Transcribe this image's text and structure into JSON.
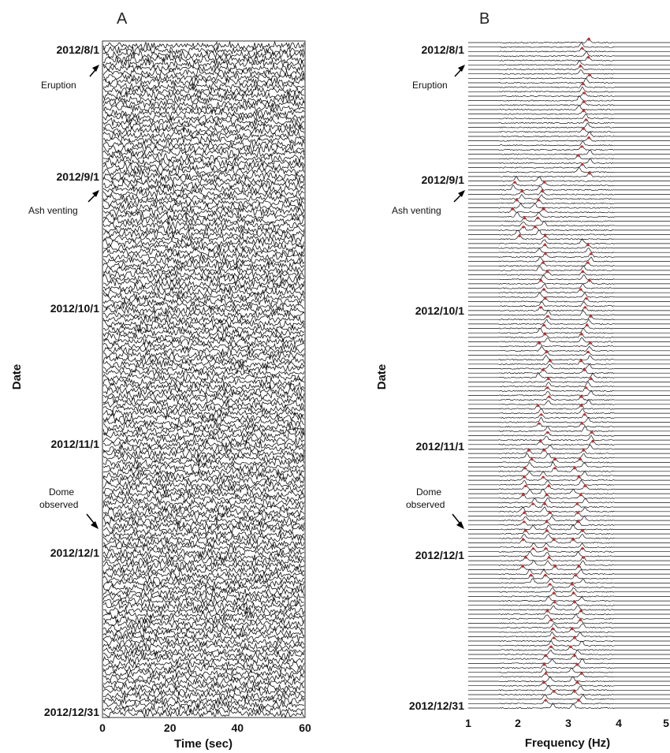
{
  "chart_data": [
    {
      "panel": "A",
      "type": "line",
      "xlabel": "Time (sec)",
      "ylabel": "Date",
      "xlim": [
        0,
        60
      ],
      "xticks": [
        0,
        20,
        40,
        60
      ],
      "ylim": [
        "2012/8/1",
        "2012/12/31"
      ],
      "y_tick_labels": [
        "2012/8/1",
        "2012/9/1",
        "2012/10/1",
        "2012/11/1",
        "2012/12/1",
        "2012/12/31"
      ],
      "annotations": [
        {
          "text": "Eruption",
          "date": "2012/8/7"
        },
        {
          "text": "Ash venting",
          "date": "2012/9/7"
        },
        {
          "text": "Dome observed",
          "date": "2012/11/24"
        }
      ],
      "trace_count": 150,
      "series": []
    },
    {
      "panel": "B",
      "type": "line",
      "xlabel": "Frequency (Hz)",
      "ylabel": "Date",
      "xlim": [
        1,
        5
      ],
      "xticks": [
        1,
        2,
        3,
        4,
        5
      ],
      "ylim": [
        "2012/8/1",
        "2012/12/31"
      ],
      "y_tick_labels": [
        "2012/8/1",
        "2012/9/1",
        "2012/10/1",
        "2012/11/1",
        "2012/12/1",
        "2012/12/31"
      ],
      "annotations": [
        {
          "text": "Eruption",
          "date": "2012/8/7"
        },
        {
          "text": "Ash venting",
          "date": "2012/9/7"
        },
        {
          "text": "Dome observed",
          "date": "2012/11/24"
        }
      ],
      "trace_count": 150,
      "peak_color": "#d42a2a",
      "series": [
        {
          "date_range": [
            "2012/8/1",
            "2012/8/31"
          ],
          "peak_frequencies_hz": [
            3.3
          ]
        },
        {
          "date_range": [
            "2012/9/1",
            "2012/9/14"
          ],
          "peak_frequencies_hz": [
            2.0,
            2.4
          ]
        },
        {
          "date_range": [
            "2012/9/15",
            "2012/10/31"
          ],
          "peak_frequencies_hz": [
            2.5,
            3.35
          ]
        },
        {
          "date_range": [
            "2012/11/1",
            "2012/11/30"
          ],
          "peak_frequencies_hz": [
            2.2,
            2.6,
            3.2
          ]
        },
        {
          "date_range": [
            "2012/12/1",
            "2012/12/31"
          ],
          "peak_frequencies_hz": [
            2.6,
            3.15
          ]
        }
      ]
    }
  ],
  "panels": {
    "a": {
      "letter": "A",
      "xlabel": "Time (sec)",
      "ylabel": "Date"
    },
    "b": {
      "letter": "B",
      "xlabel": "Frequency (Hz)",
      "ylabel": "Date"
    }
  },
  "date_labels": [
    "2012/8/1",
    "2012/9/1",
    "2012/10/1",
    "2012/11/1",
    "2012/12/1",
    "2012/12/31"
  ],
  "x_ticks_a": [
    "0",
    "20",
    "40",
    "60"
  ],
  "x_ticks_b": [
    "1",
    "2",
    "3",
    "4",
    "5"
  ],
  "annotations": {
    "eruption": "Eruption",
    "ash": "Ash venting",
    "dome_1": "Dome",
    "dome_2": "observed"
  },
  "colors": {
    "trace": "#111111",
    "peak": "#d42a2a",
    "frame": "#333333"
  }
}
